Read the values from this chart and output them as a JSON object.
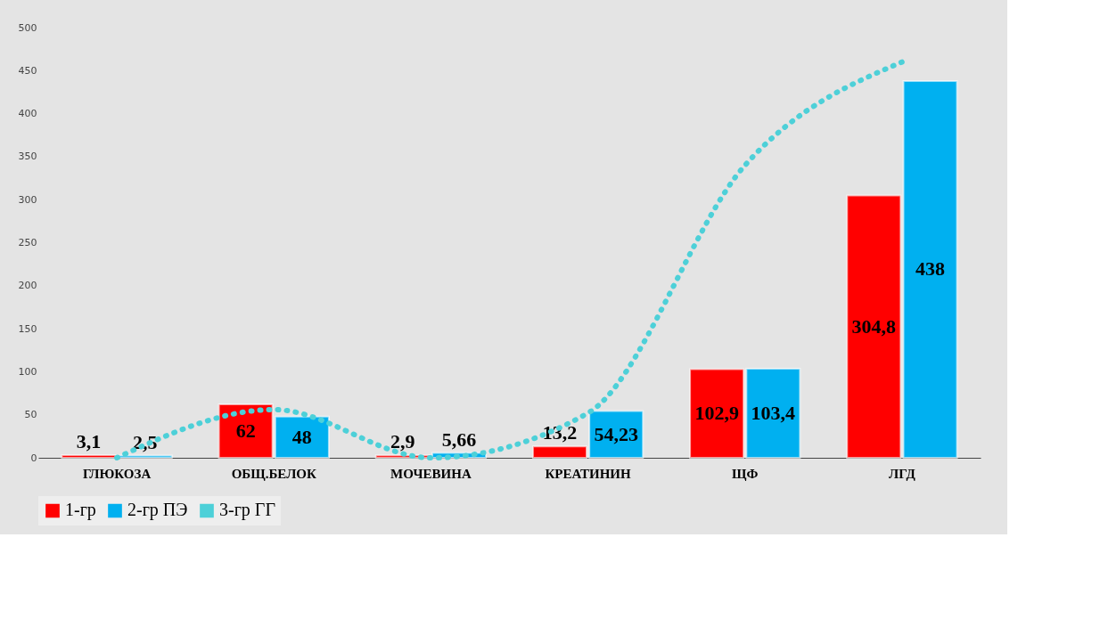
{
  "chart_data": {
    "type": "bar",
    "categories": [
      "ГЛЮКОЗА",
      "ОБЩ.БЕЛОК",
      "МОЧЕВИНА",
      "КРЕАТИНИН",
      "ЩФ",
      "ЛГД"
    ],
    "series": [
      {
        "name": "1-гр",
        "color": "#ff0000",
        "values": [
          3.1,
          62,
          2.9,
          13.2,
          102.9,
          304.8
        ],
        "value_labels": [
          "3,1",
          "62",
          "2,9",
          "13,2",
          "102,9",
          "304,8"
        ]
      },
      {
        "name": "2-гр ПЭ",
        "color": "#00b0f0",
        "values": [
          2.5,
          48,
          5.66,
          54.23,
          103.4,
          438
        ],
        "value_labels": [
          "2,5",
          "48",
          "5,66",
          "54,23",
          "103,4",
          "438"
        ]
      },
      {
        "name": "3-гр ГГ",
        "color": "#4dd0d8",
        "type": "line",
        "line_style": "dotted",
        "values": [
          0,
          56,
          0,
          52,
          340,
          460
        ]
      }
    ],
    "ylim": [
      0,
      500
    ],
    "yticks": [
      0,
      50,
      100,
      150,
      200,
      250,
      300,
      350,
      400,
      450,
      500
    ],
    "grid": false,
    "legend": "bottom"
  }
}
